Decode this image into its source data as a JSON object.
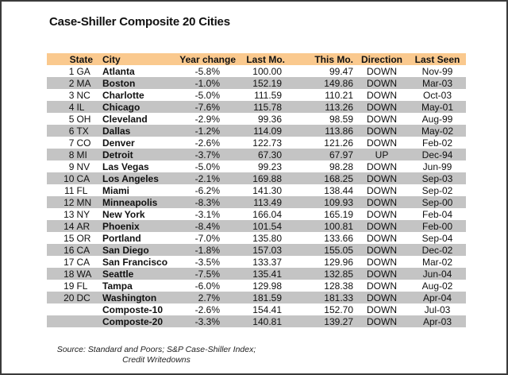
{
  "title": "Case-Shiller Composite 20 Cities",
  "table": {
    "headers": {
      "state": "State",
      "city": "City",
      "year_change": "Year change",
      "last_mo": "Last Mo.",
      "this_mo": "This Mo.",
      "direction": "Direction",
      "last_seen": "Last Seen"
    },
    "rows": [
      {
        "num": "1",
        "state": "GA",
        "city": "Atlanta",
        "year_change": "-5.8%",
        "last_mo": "100.00",
        "this_mo": "99.47",
        "direction": "DOWN",
        "last_seen": "Nov-99"
      },
      {
        "num": "2",
        "state": "MA",
        "city": "Boston",
        "year_change": "-1.0%",
        "last_mo": "152.19",
        "this_mo": "149.86",
        "direction": "DOWN",
        "last_seen": "Mar-03"
      },
      {
        "num": "3",
        "state": "NC",
        "city": "Charlotte",
        "year_change": "-5.0%",
        "last_mo": "111.59",
        "this_mo": "110.21",
        "direction": "DOWN",
        "last_seen": "Oct-03"
      },
      {
        "num": "4",
        "state": "IL",
        "city": "Chicago",
        "year_change": "-7.6%",
        "last_mo": "115.78",
        "this_mo": "113.26",
        "direction": "DOWN",
        "last_seen": "May-01"
      },
      {
        "num": "5",
        "state": "OH",
        "city": "Cleveland",
        "year_change": "-2.9%",
        "last_mo": "99.36",
        "this_mo": "98.59",
        "direction": "DOWN",
        "last_seen": "Aug-99"
      },
      {
        "num": "6",
        "state": "TX",
        "city": "Dallas",
        "year_change": "-1.2%",
        "last_mo": "114.09",
        "this_mo": "113.86",
        "direction": "DOWN",
        "last_seen": "May-02"
      },
      {
        "num": "7",
        "state": "CO",
        "city": "Denver",
        "year_change": "-2.6%",
        "last_mo": "122.73",
        "this_mo": "121.26",
        "direction": "DOWN",
        "last_seen": "Feb-02"
      },
      {
        "num": "8",
        "state": "MI",
        "city": "Detroit",
        "year_change": "-3.7%",
        "last_mo": "67.30",
        "this_mo": "67.97",
        "direction": "UP",
        "last_seen": "Dec-94"
      },
      {
        "num": "9",
        "state": "NV",
        "city": "Las Vegas",
        "year_change": "-5.0%",
        "last_mo": "99.23",
        "this_mo": "98.28",
        "direction": "DOWN",
        "last_seen": "Jun-99"
      },
      {
        "num": "10",
        "state": "CA",
        "city": "Los Angeles",
        "year_change": "-2.1%",
        "last_mo": "169.88",
        "this_mo": "168.25",
        "direction": "DOWN",
        "last_seen": "Sep-03"
      },
      {
        "num": "11",
        "state": "FL",
        "city": "Miami",
        "year_change": "-6.2%",
        "last_mo": "141.30",
        "this_mo": "138.44",
        "direction": "DOWN",
        "last_seen": "Sep-02"
      },
      {
        "num": "12",
        "state": "MN",
        "city": "Minneapolis",
        "year_change": "-8.3%",
        "last_mo": "113.49",
        "this_mo": "109.93",
        "direction": "DOWN",
        "last_seen": "Sep-00"
      },
      {
        "num": "13",
        "state": "NY",
        "city": "New York",
        "year_change": "-3.1%",
        "last_mo": "166.04",
        "this_mo": "165.19",
        "direction": "DOWN",
        "last_seen": "Feb-04"
      },
      {
        "num": "14",
        "state": "AR",
        "city": "Phoenix",
        "year_change": "-8.4%",
        "last_mo": "101.54",
        "this_mo": "100.81",
        "direction": "DOWN",
        "last_seen": "Feb-00"
      },
      {
        "num": "15",
        "state": "OR",
        "city": "Portland",
        "year_change": "-7.0%",
        "last_mo": "135.80",
        "this_mo": "133.66",
        "direction": "DOWN",
        "last_seen": "Sep-04"
      },
      {
        "num": "16",
        "state": "CA",
        "city": "San Diego",
        "year_change": "-1.8%",
        "last_mo": "157.03",
        "this_mo": "155.05",
        "direction": "DOWN",
        "last_seen": "Dec-02"
      },
      {
        "num": "17",
        "state": "CA",
        "city": "San Francisco",
        "year_change": "-3.5%",
        "last_mo": "133.37",
        "this_mo": "129.96",
        "direction": "DOWN",
        "last_seen": "Mar-02"
      },
      {
        "num": "18",
        "state": "WA",
        "city": "Seattle",
        "year_change": "-7.5%",
        "last_mo": "135.41",
        "this_mo": "132.85",
        "direction": "DOWN",
        "last_seen": "Jun-04"
      },
      {
        "num": "19",
        "state": "FL",
        "city": "Tampa",
        "year_change": "-6.0%",
        "last_mo": "129.98",
        "this_mo": "128.38",
        "direction": "DOWN",
        "last_seen": "Aug-02"
      },
      {
        "num": "20",
        "state": "DC",
        "city": "Washington",
        "year_change": "2.7%",
        "last_mo": "181.59",
        "this_mo": "181.33",
        "direction": "DOWN",
        "last_seen": "Apr-04"
      },
      {
        "num": "",
        "state": "",
        "city": "Composte-10",
        "year_change": "-2.6%",
        "last_mo": "154.41",
        "this_mo": "152.70",
        "direction": "DOWN",
        "last_seen": "Jul-03"
      },
      {
        "num": "",
        "state": "",
        "city": "Composte-20",
        "year_change": "-3.3%",
        "last_mo": "140.81",
        "this_mo": "139.27",
        "direction": "DOWN",
        "last_seen": "Apr-03"
      }
    ]
  },
  "source": {
    "line1": "Source: Standard and Poors; S&P Case-Shiller Index;",
    "line2": "Credit Writedowns"
  },
  "colors": {
    "header_bg": "#fac98e",
    "shade_bg": "#c4c4c4"
  }
}
